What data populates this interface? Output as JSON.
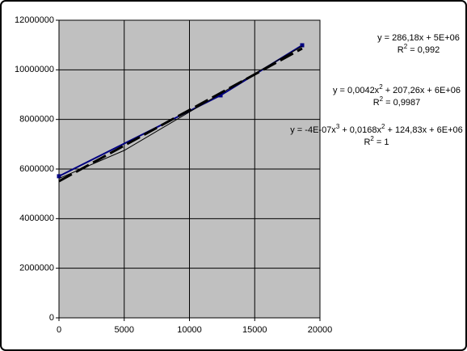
{
  "chart_data": {
    "type": "scatter",
    "xlim": [
      0,
      20000
    ],
    "xticks": [
      0,
      5000,
      10000,
      15000,
      20000
    ],
    "ylim": [
      0,
      12000000
    ],
    "yticks": [
      0,
      2000000,
      4000000,
      6000000,
      8000000,
      10000000,
      12000000
    ],
    "grid": true,
    "background": "#c0c0c0",
    "series": [
      {
        "color": "#000080",
        "x": [
          0,
          12384,
          18637
        ],
        "values": [
          5710000,
          8970000,
          10990000
        ],
        "line": "solid",
        "markers": true
      },
      {
        "color": "#000000",
        "x": [
          0,
          18637
        ],
        "values": [
          5510000,
          10860000
        ],
        "line": "dashed",
        "markers": false
      },
      {
        "color": "#000000",
        "x": [
          0,
          5000,
          10000,
          15000,
          18637
        ],
        "values": [
          5620000,
          6750000,
          8300000,
          9850000,
          10950000
        ],
        "line": "thin",
        "markers": false
      }
    ],
    "annotations": [
      [
        "y = 286,18x + 5E+06"
      ],
      [
        "R",
        "2",
        " = 0,992"
      ],
      [
        "y = 0,0042x",
        "2",
        " + 207,26x + 6E+06"
      ],
      [
        "R",
        "2",
        " = 0,9987"
      ],
      [
        "y = -4E-07x",
        "3",
        " + 0,0168x",
        "2",
        " + 124,83x + 6E+06"
      ],
      [
        "R",
        "2",
        " = 1"
      ]
    ]
  }
}
